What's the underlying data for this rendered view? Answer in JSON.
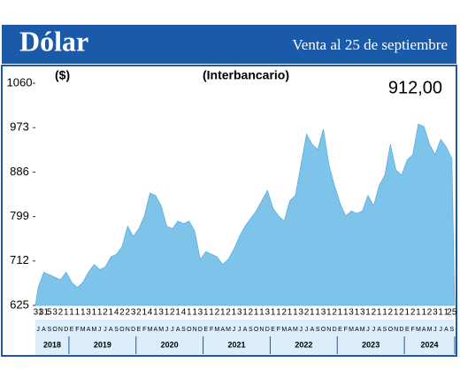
{
  "chart_data": {
    "type": "area",
    "title": "Dólar",
    "subtitle": "Venta al 25 de septiembre",
    "annotation": "(Interbancario)",
    "y_unit": "($)",
    "last_value_label": "912,00",
    "color": "#7ec4ea",
    "categories": [
      "J",
      "A",
      "S",
      "O",
      "N",
      "D",
      "E",
      "F",
      "M",
      "A",
      "M",
      "J",
      "J",
      "A",
      "S",
      "O",
      "N",
      "D",
      "E",
      "F",
      "M",
      "A",
      "M",
      "J",
      "J",
      "A",
      "S",
      "O",
      "N",
      "D",
      "E",
      "F",
      "M",
      "A",
      "M",
      "J",
      "J",
      "A",
      "S",
      "O",
      "N",
      "D",
      "E",
      "F",
      "M",
      "A",
      "M",
      "J",
      "J",
      "A",
      "S",
      "O",
      "N",
      "D",
      "E",
      "F",
      "M",
      "A",
      "M",
      "J",
      "J",
      "A",
      "S",
      "O",
      "N",
      "D",
      "E",
      "F",
      "M",
      "A",
      "M",
      "J",
      "J",
      "A",
      "S"
    ],
    "day_labels": [
      "31",
      "31",
      "5",
      "3",
      "2",
      "1",
      "1",
      "1",
      "1",
      "3",
      "1",
      "1",
      "2",
      "1",
      "4",
      "2",
      "2",
      "3",
      "2",
      "1",
      "4",
      "1",
      "3",
      "1",
      "2",
      "1",
      "4",
      "1",
      "1",
      "3",
      "1",
      "1",
      "2",
      "1",
      "2",
      "1",
      "3",
      "1",
      "2",
      "1",
      "1",
      "3",
      "1",
      "1",
      "2",
      "1",
      "1",
      "3",
      "2",
      "1",
      "1",
      "3",
      "1",
      "2",
      "1",
      "1",
      "3",
      "1",
      "3",
      "1",
      "2",
      "1",
      "1",
      "2",
      "1",
      "2",
      "1",
      "2",
      "1",
      "1",
      "2",
      "3",
      "1",
      "1",
      "25"
    ],
    "years": [
      {
        "label": "2018",
        "start": 0,
        "end": 5
      },
      {
        "label": "2019",
        "start": 6,
        "end": 17
      },
      {
        "label": "2020",
        "start": 18,
        "end": 29
      },
      {
        "label": "2021",
        "start": 30,
        "end": 41
      },
      {
        "label": "2022",
        "start": 42,
        "end": 53
      },
      {
        "label": "2023",
        "start": 54,
        "end": 65
      },
      {
        "label": "2024",
        "start": 66,
        "end": 74
      }
    ],
    "values": [
      660,
      690,
      685,
      680,
      675,
      690,
      670,
      660,
      670,
      690,
      705,
      695,
      700,
      720,
      725,
      740,
      780,
      760,
      775,
      800,
      845,
      840,
      820,
      780,
      775,
      790,
      785,
      790,
      770,
      715,
      730,
      725,
      720,
      705,
      715,
      735,
      760,
      780,
      795,
      810,
      830,
      850,
      815,
      800,
      790,
      830,
      840,
      900,
      960,
      940,
      930,
      970,
      900,
      860,
      825,
      800,
      810,
      805,
      810,
      840,
      820,
      860,
      880,
      940,
      890,
      880,
      910,
      920,
      980,
      975,
      940,
      920,
      950,
      935,
      912
    ],
    "ylim": [
      625,
      1060
    ],
    "yticks": [
      625,
      712,
      799,
      886,
      973,
      1060
    ]
  }
}
